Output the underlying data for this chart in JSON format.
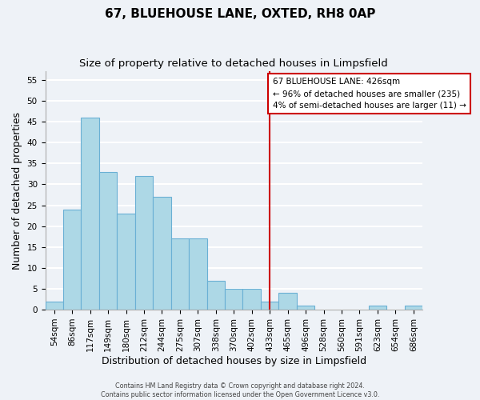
{
  "title": "67, BLUEHOUSE LANE, OXTED, RH8 0AP",
  "subtitle": "Size of property relative to detached houses in Limpsfield",
  "xlabel": "Distribution of detached houses by size in Limpsfield",
  "ylabel": "Number of detached properties",
  "bin_labels": [
    "54sqm",
    "86sqm",
    "117sqm",
    "149sqm",
    "180sqm",
    "212sqm",
    "244sqm",
    "275sqm",
    "307sqm",
    "338sqm",
    "370sqm",
    "402sqm",
    "433sqm",
    "465sqm",
    "496sqm",
    "528sqm",
    "560sqm",
    "591sqm",
    "623sqm",
    "654sqm",
    "686sqm"
  ],
  "bar_heights": [
    2,
    24,
    46,
    33,
    23,
    32,
    27,
    17,
    17,
    7,
    5,
    5,
    2,
    4,
    1,
    0,
    0,
    0,
    1,
    0,
    1
  ],
  "bar_color": "#add8e6",
  "bar_edge_color": "#6ab0d4",
  "vline_x_index": 12.0,
  "vline_color": "#cc0000",
  "annotation_line1": "67 BLUEHOUSE LANE: 426sqm",
  "annotation_line2": "← 96% of detached houses are smaller (235)",
  "annotation_line3": "4% of semi-detached houses are larger (11) →",
  "annotation_box_color": "#ffffff",
  "annotation_box_edge": "#cc0000",
  "ylim": [
    0,
    57
  ],
  "yticks": [
    0,
    5,
    10,
    15,
    20,
    25,
    30,
    35,
    40,
    45,
    50,
    55
  ],
  "footer_line1": "Contains HM Land Registry data © Crown copyright and database right 2024.",
  "footer_line2": "Contains public sector information licensed under the Open Government Licence v3.0.",
  "bg_color": "#eef2f7",
  "grid_color": "#ffffff",
  "title_fontsize": 11,
  "subtitle_fontsize": 9.5,
  "tick_fontsize": 7.5,
  "ylabel_fontsize": 9,
  "xlabel_fontsize": 9,
  "footer_fontsize": 5.8
}
